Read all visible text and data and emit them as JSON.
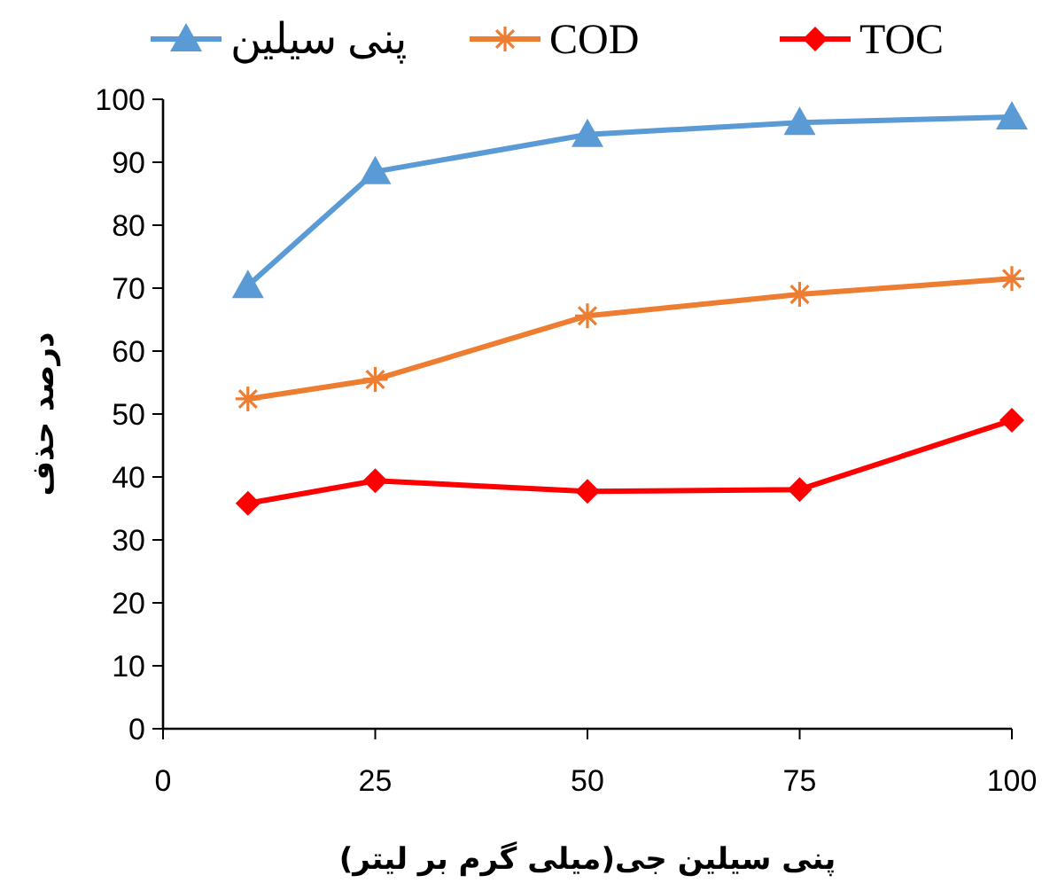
{
  "chart_data": {
    "type": "line",
    "xlabel": "پنی سیلین جی(میلی گرم بر لیتر)",
    "ylabel": "درصد حذف",
    "x": [
      10,
      25,
      50,
      75,
      100
    ],
    "xlim": [
      0,
      100
    ],
    "xticks": [
      0,
      25,
      50,
      75,
      100
    ],
    "ylim": [
      0,
      100
    ],
    "yticks": [
      0,
      10,
      20,
      30,
      40,
      50,
      60,
      70,
      80,
      90,
      100
    ],
    "grid": false,
    "legend": "top",
    "line_style": "solid",
    "series": [
      {
        "name": "پنی سیلین",
        "color": "#5b9bd5",
        "marker": "triangle",
        "values": [
          70.4,
          88.5,
          94.4,
          96.3,
          97.2
        ]
      },
      {
        "name": "COD",
        "color": "#ed7d31",
        "marker": "cross",
        "values": [
          52.4,
          55.5,
          65.6,
          69.0,
          71.5
        ]
      },
      {
        "name": "TOC",
        "color": "#ff0000",
        "marker": "diamond",
        "values": [
          35.8,
          39.4,
          37.7,
          38.0,
          49.0
        ]
      }
    ]
  }
}
